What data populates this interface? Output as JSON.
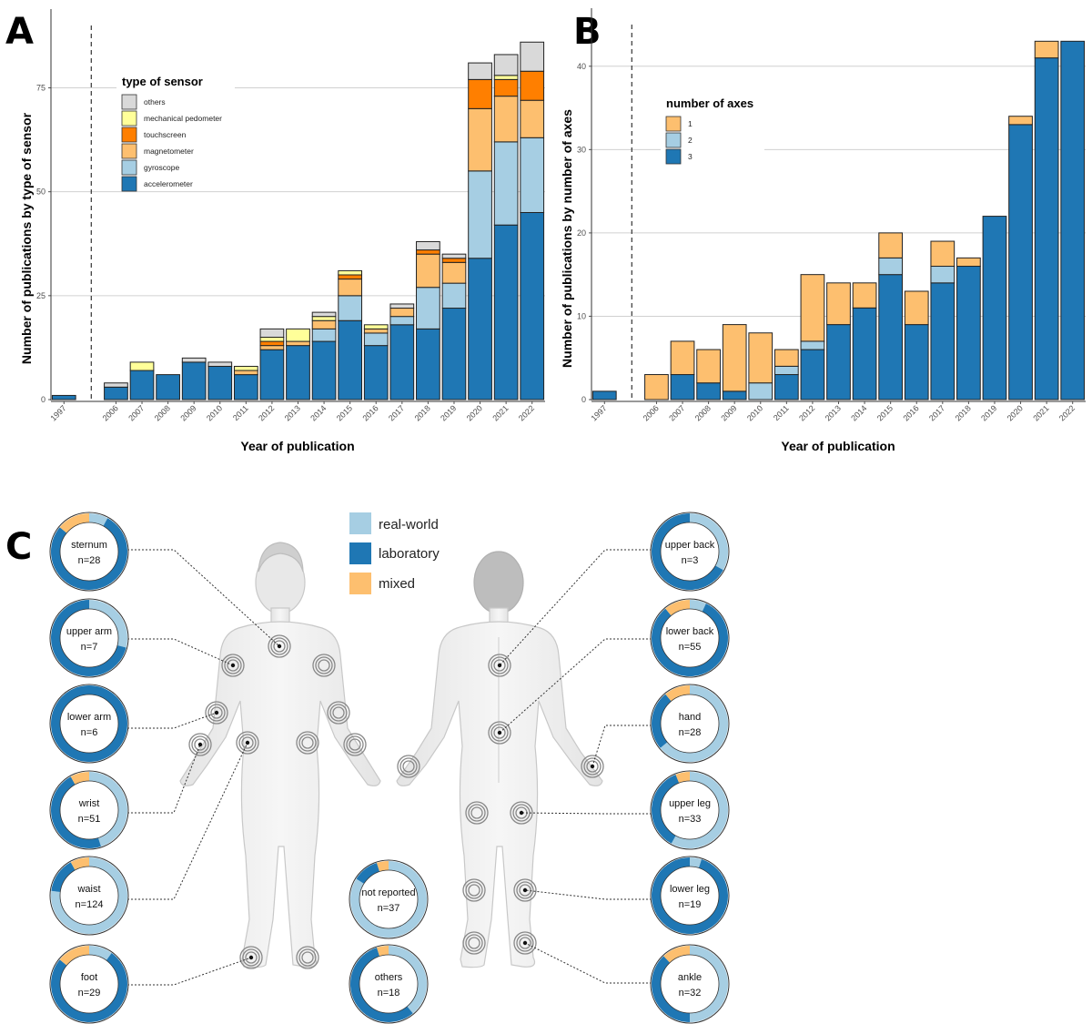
{
  "panels": {
    "a": "A",
    "b": "B",
    "c": "C"
  },
  "colors": {
    "accelerometer": "#1f77b4",
    "gyroscope": "#a6cee3",
    "magnetometer": "#fdbf6f",
    "touchscreen": "#ff7f00",
    "mechanical_pedometer": "#ffff99",
    "others": "#d9d9d9",
    "axis1": "#fdbf6f",
    "axis2": "#a6cee3",
    "axis3": "#1f77b4",
    "real_world": "#a6cee3",
    "laboratory": "#1f77b4",
    "mixed": "#fdbf6f"
  },
  "chart_data": [
    {
      "type": "bar",
      "panel": "A",
      "stacked": true,
      "xlabel": "Year of publication",
      "ylabel": "Number of publications by type of sensor",
      "ylim": [
        0,
        90
      ],
      "yticks": [
        0,
        25,
        50,
        75
      ],
      "grid": "horizontal",
      "legend_title": "type of sensor",
      "legend_placement": "top-right",
      "annotation": "dashed vertical line separating 1997 from 2006",
      "categories": [
        "1997",
        "2006",
        "2007",
        "2008",
        "2009",
        "2010",
        "2011",
        "2012",
        "2013",
        "2014",
        "2015",
        "2016",
        "2017",
        "2018",
        "2019",
        "2020",
        "2021",
        "2022"
      ],
      "series": [
        {
          "name": "accelerometer",
          "values": [
            1,
            3,
            7,
            6,
            9,
            8,
            6,
            12,
            13,
            14,
            19,
            13,
            18,
            17,
            22,
            34,
            42,
            45
          ]
        },
        {
          "name": "gyroscope",
          "values": [
            0,
            0,
            0,
            0,
            0,
            0,
            0,
            0,
            0,
            3,
            6,
            3,
            2,
            10,
            6,
            21,
            20,
            18
          ]
        },
        {
          "name": "magnetometer",
          "values": [
            0,
            0,
            0,
            0,
            0,
            0,
            1,
            1,
            1,
            2,
            4,
            1,
            2,
            8,
            5,
            15,
            11,
            9
          ]
        },
        {
          "name": "touchscreen",
          "values": [
            0,
            0,
            0,
            0,
            0,
            0,
            0,
            1,
            0,
            0,
            1,
            0,
            0,
            1,
            1,
            7,
            4,
            7
          ]
        },
        {
          "name": "mechanical pedometer",
          "values": [
            0,
            0,
            2,
            0,
            0,
            0,
            1,
            1,
            3,
            1,
            1,
            1,
            0,
            0,
            0,
            0,
            1,
            0
          ]
        },
        {
          "name": "others",
          "values": [
            0,
            1,
            0,
            0,
            1,
            1,
            0,
            2,
            0,
            1,
            0,
            0,
            1,
            2,
            1,
            4,
            5,
            7
          ]
        }
      ]
    },
    {
      "type": "bar",
      "panel": "B",
      "stacked": true,
      "xlabel": "Year of publication",
      "ylabel": "Number of publications by number of axes",
      "ylim": [
        0,
        45
      ],
      "yticks": [
        0,
        10,
        20,
        30,
        40
      ],
      "grid": "horizontal",
      "legend_title": "number of axes",
      "legend_placement": "top-left",
      "annotation": "dashed vertical line separating 1997 from 2006",
      "categories": [
        "1997",
        "2006",
        "2007",
        "2008",
        "2009",
        "2010",
        "2011",
        "2012",
        "2013",
        "2014",
        "2015",
        "2016",
        "2017",
        "2018",
        "2019",
        "2020",
        "2021",
        "2022"
      ],
      "series": [
        {
          "name": "3",
          "values": [
            1,
            0,
            3,
            2,
            1,
            0,
            3,
            6,
            9,
            11,
            15,
            9,
            14,
            16,
            22,
            33,
            41,
            43
          ]
        },
        {
          "name": "2",
          "values": [
            0,
            0,
            0,
            0,
            0,
            2,
            1,
            1,
            0,
            0,
            2,
            0,
            2,
            0,
            0,
            0,
            0,
            0
          ]
        },
        {
          "name": "1",
          "values": [
            0,
            3,
            4,
            4,
            8,
            6,
            2,
            8,
            5,
            3,
            3,
            4,
            3,
            1,
            0,
            1,
            2,
            0
          ]
        }
      ]
    },
    {
      "type": "pie",
      "panel": "C",
      "variant": "donut",
      "legend": [
        "real-world",
        "laboratory",
        "mixed"
      ],
      "legend_placement": "top-center",
      "segments_order": [
        "real-world",
        "laboratory",
        "mixed"
      ],
      "donuts": [
        {
          "id": "sternum",
          "label": "sternum",
          "n": "n=28",
          "fractions": [
            0.08,
            0.78,
            0.14
          ]
        },
        {
          "id": "upper-arm",
          "label": "upper arm",
          "n": "n=7",
          "fractions": [
            0.29,
            0.71,
            0.0
          ]
        },
        {
          "id": "lower-arm",
          "label": "lower arm",
          "n": "n=6",
          "fractions": [
            0.0,
            1.0,
            0.0
          ]
        },
        {
          "id": "wrist",
          "label": "wrist",
          "n": "n=51",
          "fractions": [
            0.45,
            0.47,
            0.08
          ]
        },
        {
          "id": "waist",
          "label": "waist",
          "n": "n=124",
          "fractions": [
            0.77,
            0.15,
            0.08
          ]
        },
        {
          "id": "foot",
          "label": "foot",
          "n": "n=29",
          "fractions": [
            0.1,
            0.76,
            0.14
          ]
        },
        {
          "id": "not-reported",
          "label": "not reported",
          "n": "n=37",
          "fractions": [
            0.84,
            0.11,
            0.05
          ]
        },
        {
          "id": "others",
          "label": "others",
          "n": "n=18",
          "fractions": [
            0.39,
            0.56,
            0.05
          ]
        },
        {
          "id": "upper-back",
          "label": "upper back",
          "n": "n=3",
          "fractions": [
            0.33,
            0.67,
            0.0
          ]
        },
        {
          "id": "lower-back",
          "label": "lower back",
          "n": "n=55",
          "fractions": [
            0.07,
            0.82,
            0.11
          ]
        },
        {
          "id": "hand",
          "label": "hand",
          "n": "n=28",
          "fractions": [
            0.64,
            0.25,
            0.11
          ]
        },
        {
          "id": "upper-leg",
          "label": "upper leg",
          "n": "n=33",
          "fractions": [
            0.58,
            0.36,
            0.06
          ]
        },
        {
          "id": "lower-leg",
          "label": "lower leg",
          "n": "n=19",
          "fractions": [
            0.05,
            0.95,
            0.0
          ]
        },
        {
          "id": "ankle",
          "label": "ankle",
          "n": "n=32",
          "fractions": [
            0.5,
            0.38,
            0.12
          ]
        }
      ]
    }
  ]
}
